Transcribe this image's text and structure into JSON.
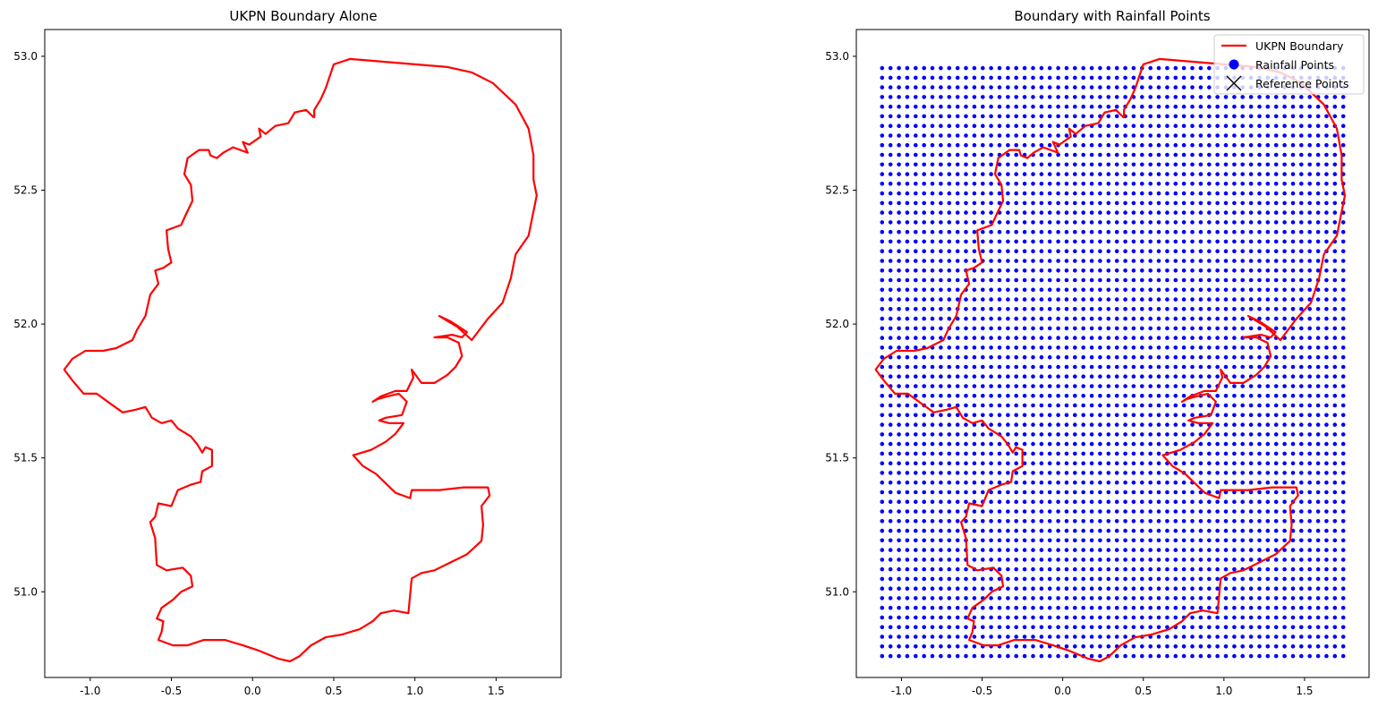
{
  "colors": {
    "boundary": "#ff0000",
    "rainfall": "#0000ff",
    "reference": "#000000"
  },
  "chart_data": [
    {
      "type": "line",
      "title": "UKPN Boundary Alone",
      "xlim": [
        -1.28,
        1.9
      ],
      "ylim": [
        50.68,
        53.1
      ],
      "xticks": [
        "-1.0",
        "-0.5",
        "0.0",
        "0.5",
        "1.0",
        "1.5"
      ],
      "yticks": [
        "51.0",
        "51.5",
        "52.0",
        "52.5",
        "53.0"
      ],
      "grid": false,
      "series": [
        {
          "kind": "boundary",
          "points": [
            [
              0.38,
              52.77
            ],
            [
              0.33,
              52.8
            ],
            [
              0.26,
              52.79
            ],
            [
              0.22,
              52.75
            ],
            [
              0.14,
              52.74
            ],
            [
              0.08,
              52.71
            ],
            [
              0.04,
              52.73
            ],
            [
              0.05,
              52.7
            ],
            [
              -0.02,
              52.67
            ],
            [
              -0.06,
              52.68
            ],
            [
              -0.03,
              52.64
            ],
            [
              -0.12,
              52.66
            ],
            [
              -0.18,
              52.64
            ],
            [
              -0.22,
              52.62
            ],
            [
              -0.26,
              52.63
            ],
            [
              -0.27,
              52.65
            ],
            [
              -0.33,
              52.65
            ],
            [
              -0.4,
              52.62
            ],
            [
              -0.42,
              52.56
            ],
            [
              -0.38,
              52.52
            ],
            [
              -0.37,
              52.46
            ],
            [
              -0.41,
              52.41
            ],
            [
              -0.44,
              52.37
            ],
            [
              -0.53,
              52.35
            ],
            [
              -0.52,
              52.28
            ],
            [
              -0.5,
              52.23
            ],
            [
              -0.55,
              52.21
            ],
            [
              -0.6,
              52.2
            ],
            [
              -0.58,
              52.15
            ],
            [
              -0.63,
              52.11
            ],
            [
              -0.66,
              52.03
            ],
            [
              -0.71,
              51.98
            ],
            [
              -0.74,
              51.94
            ],
            [
              -0.84,
              51.91
            ],
            [
              -0.92,
              51.9
            ],
            [
              -1.03,
              51.9
            ],
            [
              -1.11,
              51.87
            ],
            [
              -1.16,
              51.83
            ],
            [
              -1.11,
              51.79
            ],
            [
              -1.04,
              51.74
            ],
            [
              -0.96,
              51.74
            ],
            [
              -0.87,
              51.7
            ],
            [
              -0.8,
              51.67
            ],
            [
              -0.72,
              51.68
            ],
            [
              -0.66,
              51.69
            ],
            [
              -0.62,
              51.65
            ],
            [
              -0.56,
              51.63
            ],
            [
              -0.5,
              51.64
            ],
            [
              -0.46,
              51.61
            ],
            [
              -0.38,
              51.58
            ],
            [
              -0.34,
              51.55
            ],
            [
              -0.31,
              51.52
            ],
            [
              -0.29,
              51.54
            ],
            [
              -0.25,
              51.53
            ],
            [
              -0.25,
              51.47
            ],
            [
              -0.31,
              51.45
            ],
            [
              -0.32,
              51.41
            ],
            [
              -0.38,
              51.4
            ],
            [
              -0.46,
              51.38
            ],
            [
              -0.5,
              51.32
            ],
            [
              -0.58,
              51.33
            ],
            [
              -0.6,
              51.28
            ],
            [
              -0.63,
              51.26
            ],
            [
              -0.6,
              51.2
            ],
            [
              -0.59,
              51.1
            ],
            [
              -0.53,
              51.08
            ],
            [
              -0.43,
              51.09
            ],
            [
              -0.38,
              51.06
            ],
            [
              -0.37,
              51.02
            ],
            [
              -0.44,
              51.0
            ],
            [
              -0.49,
              50.97
            ],
            [
              -0.56,
              50.94
            ],
            [
              -0.59,
              50.9
            ],
            [
              -0.55,
              50.89
            ],
            [
              -0.56,
              50.85
            ],
            [
              -0.58,
              50.82
            ],
            [
              -0.49,
              50.8
            ],
            [
              -0.4,
              50.8
            ],
            [
              -0.3,
              50.82
            ],
            [
              -0.17,
              50.82
            ],
            [
              -0.06,
              50.8
            ],
            [
              0.04,
              50.78
            ],
            [
              0.16,
              50.75
            ],
            [
              0.23,
              50.74
            ],
            [
              0.29,
              50.76
            ],
            [
              0.36,
              50.8
            ],
            [
              0.45,
              50.83
            ],
            [
              0.55,
              50.84
            ],
            [
              0.66,
              50.86
            ],
            [
              0.74,
              50.89
            ],
            [
              0.79,
              50.92
            ],
            [
              0.87,
              50.93
            ],
            [
              0.96,
              50.92
            ],
            [
              0.98,
              51.05
            ],
            [
              1.04,
              51.07
            ],
            [
              1.12,
              51.08
            ],
            [
              1.22,
              51.11
            ],
            [
              1.32,
              51.14
            ],
            [
              1.41,
              51.19
            ],
            [
              1.42,
              51.25
            ],
            [
              1.41,
              51.32
            ],
            [
              1.46,
              51.36
            ],
            [
              1.45,
              51.39
            ],
            [
              1.3,
              51.39
            ],
            [
              1.15,
              51.38
            ],
            [
              0.98,
              51.38
            ],
            [
              0.97,
              51.35
            ],
            [
              0.88,
              51.37
            ],
            [
              0.76,
              51.44
            ],
            [
              0.68,
              51.47
            ],
            [
              0.62,
              51.51
            ],
            [
              0.73,
              51.53
            ],
            [
              0.82,
              51.56
            ],
            [
              0.88,
              51.59
            ],
            [
              0.93,
              51.63
            ],
            [
              0.84,
              51.63
            ],
            [
              0.78,
              51.64
            ],
            [
              0.82,
              51.65
            ],
            [
              0.92,
              51.66
            ],
            [
              0.95,
              51.71
            ],
            [
              0.9,
              51.74
            ],
            [
              0.83,
              51.73
            ],
            [
              0.77,
              51.72
            ],
            [
              0.74,
              51.71
            ],
            [
              0.79,
              51.73
            ],
            [
              0.88,
              51.75
            ],
            [
              0.95,
              51.75
            ],
            [
              0.99,
              51.8
            ],
            [
              0.98,
              51.83
            ],
            [
              1.04,
              51.78
            ],
            [
              1.12,
              51.78
            ],
            [
              1.2,
              51.81
            ],
            [
              1.25,
              51.84
            ],
            [
              1.29,
              51.88
            ],
            [
              1.27,
              51.93
            ],
            [
              1.2,
              51.95
            ],
            [
              1.12,
              51.95
            ],
            [
              1.23,
              51.96
            ],
            [
              1.29,
              51.95
            ],
            [
              1.32,
              51.97
            ],
            [
              1.22,
              52.01
            ],
            [
              1.15,
              52.03
            ],
            [
              1.26,
              51.99
            ],
            [
              1.35,
              51.94
            ],
            [
              1.45,
              52.02
            ],
            [
              1.54,
              52.08
            ],
            [
              1.59,
              52.17
            ],
            [
              1.62,
              52.26
            ],
            [
              1.7,
              52.33
            ],
            [
              1.75,
              52.48
            ],
            [
              1.73,
              52.54
            ],
            [
              1.73,
              52.63
            ],
            [
              1.7,
              52.73
            ],
            [
              1.62,
              52.82
            ],
            [
              1.48,
              52.9
            ],
            [
              1.35,
              52.94
            ],
            [
              1.2,
              52.96
            ],
            [
              1.0,
              52.97
            ],
            [
              0.8,
              52.98
            ],
            [
              0.6,
              52.99
            ],
            [
              0.5,
              52.97
            ],
            [
              0.45,
              52.88
            ],
            [
              0.42,
              52.84
            ],
            [
              0.38,
              52.8
            ],
            [
              0.38,
              52.77
            ]
          ]
        }
      ]
    },
    {
      "type": "scatter",
      "title": "Boundary with Rainfall Points",
      "xlim": [
        -1.28,
        1.9
      ],
      "ylim": [
        50.68,
        53.1
      ],
      "xticks": [
        "-1.0",
        "-0.5",
        "0.0",
        "0.5",
        "1.0",
        "1.5"
      ],
      "yticks": [
        "51.0",
        "51.5",
        "52.0",
        "52.5",
        "53.0"
      ],
      "grid": false,
      "legend_placement": "top-right",
      "legend": [
        "UKPN Boundary",
        "Rainfall Points",
        "Reference Points"
      ],
      "rainfall_grid": {
        "lon_range": [
          -1.12,
          1.75
        ],
        "lat_range": [
          50.76,
          52.97
        ],
        "lon_step": 0.052,
        "lat_step": 0.036
      }
    }
  ]
}
